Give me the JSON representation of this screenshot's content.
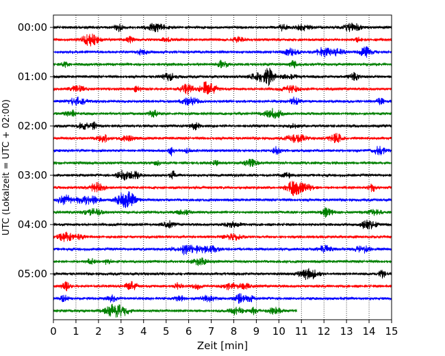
{
  "chart_data": {
    "type": "line",
    "title": "",
    "xlabel": "Zeit  [min]",
    "ylabel": "UTC (Lokalzeit = UTC + 02:00)",
    "xlim": [
      0,
      15
    ],
    "x_ticks": [
      "0",
      "1",
      "2",
      "3",
      "4",
      "5",
      "6",
      "7",
      "8",
      "9",
      "10",
      "11",
      "12",
      "13",
      "14",
      "15"
    ],
    "y_ticks": [
      "00:00",
      "01:00",
      "02:00",
      "03:00",
      "04:00",
      "05:00"
    ],
    "row_interval_min": 15,
    "grid": "vertical dotted",
    "series_colors": [
      "#000000",
      "#ff0000",
      "#0000ff",
      "#008000"
    ],
    "rows": [
      {
        "start": "00:00",
        "duration_min": 15
      },
      {
        "start": "00:15",
        "duration_min": 15
      },
      {
        "start": "00:30",
        "duration_min": 15
      },
      {
        "start": "00:45",
        "duration_min": 15
      },
      {
        "start": "01:00",
        "duration_min": 15
      },
      {
        "start": "01:15",
        "duration_min": 15
      },
      {
        "start": "01:30",
        "duration_min": 15
      },
      {
        "start": "01:45",
        "duration_min": 15
      },
      {
        "start": "02:00",
        "duration_min": 15
      },
      {
        "start": "02:15",
        "duration_min": 15
      },
      {
        "start": "02:30",
        "duration_min": 15
      },
      {
        "start": "02:45",
        "duration_min": 15
      },
      {
        "start": "03:00",
        "duration_min": 15
      },
      {
        "start": "03:15",
        "duration_min": 15
      },
      {
        "start": "03:30",
        "duration_min": 15
      },
      {
        "start": "03:45",
        "duration_min": 15
      },
      {
        "start": "04:00",
        "duration_min": 15
      },
      {
        "start": "04:15",
        "duration_min": 15
      },
      {
        "start": "04:30",
        "duration_min": 15
      },
      {
        "start": "04:45",
        "duration_min": 15
      },
      {
        "start": "05:00",
        "duration_min": 15
      },
      {
        "start": "05:15",
        "duration_min": 15
      },
      {
        "start": "05:30",
        "duration_min": 15
      },
      {
        "start": "05:45",
        "duration_min": 10.8
      }
    ]
  }
}
